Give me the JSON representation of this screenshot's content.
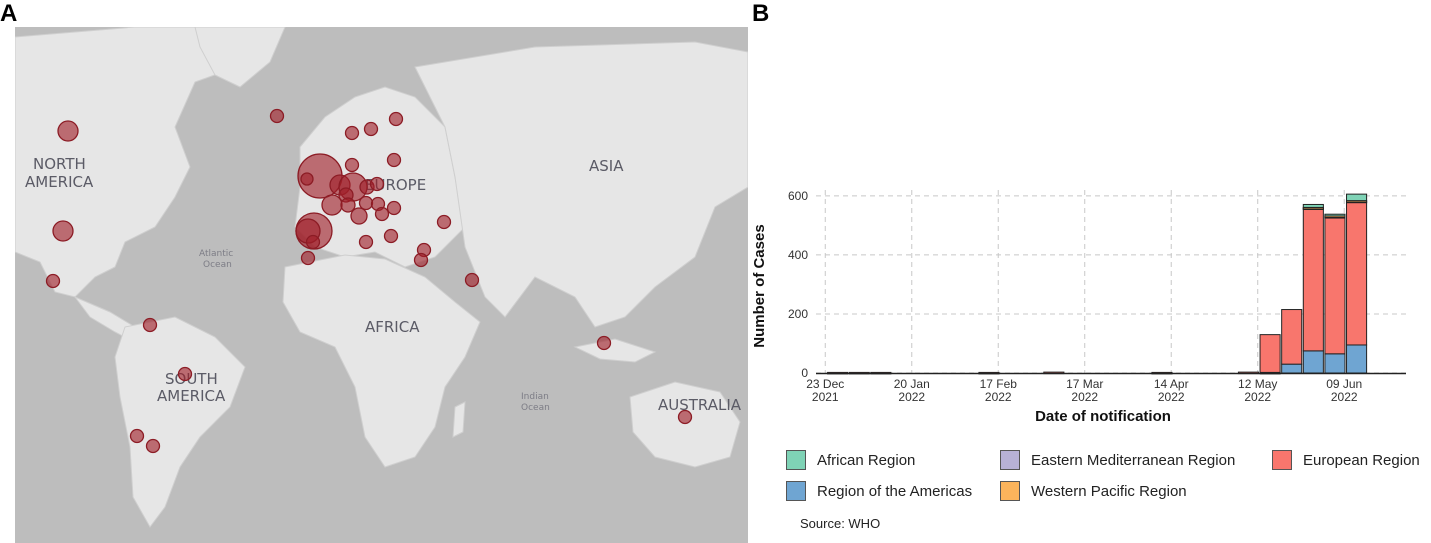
{
  "panels": {
    "a_label": "A",
    "b_label": "B"
  },
  "map": {
    "labels": {
      "north_america": [
        "NORTH",
        "AMERICA"
      ],
      "south_america": [
        "SOUTH",
        "AMERICA"
      ],
      "europe": "EUROPE",
      "asia": "ASIA",
      "africa": "AFRICA",
      "australia": "AUSTRALIA",
      "atlantic": [
        "Atlantic",
        "Ocean"
      ],
      "indian": [
        "Indian",
        "Ocean"
      ]
    },
    "bubble_color": "#a01e28",
    "land_color": "#e6e6e6",
    "water_color": "#bdbdbd"
  },
  "chart_data": {
    "type": "bar",
    "stacked": true,
    "xlabel": "Date of notification",
    "ylabel": "Number of Cases",
    "ylim": [
      0,
      620
    ],
    "yticks": [
      0,
      200,
      400,
      600
    ],
    "xticks": [
      {
        "date": "2021-12-23",
        "label": [
          "23 Dec",
          "2021"
        ]
      },
      {
        "date": "2022-01-20",
        "label": [
          "20 Jan",
          "2022"
        ]
      },
      {
        "date": "2022-02-17",
        "label": [
          "17 Feb",
          "2022"
        ]
      },
      {
        "date": "2022-03-17",
        "label": [
          "17 Mar",
          "2022"
        ]
      },
      {
        "date": "2022-04-14",
        "label": [
          "14 Apr",
          "2022"
        ]
      },
      {
        "date": "2022-05-12",
        "label": [
          "12 May",
          "2022"
        ]
      },
      {
        "date": "2022-06-09",
        "label": [
          "09 Jun",
          "2022"
        ]
      }
    ],
    "xrange": [
      "2021-12-20",
      "2022-06-29"
    ],
    "grid": true,
    "categories": [
      "2021-12-27",
      "2022-01-03",
      "2022-01-10",
      "2022-02-14",
      "2022-03-07",
      "2022-04-11",
      "2022-05-09",
      "2022-05-16",
      "2022-05-23",
      "2022-05-30",
      "2022-06-06",
      "2022-06-13"
    ],
    "series": [
      {
        "name": "Region of the Americas",
        "color": "#6fa5d2",
        "values": [
          0,
          0,
          0,
          0,
          0,
          0,
          0,
          2,
          30,
          75,
          65,
          95
        ]
      },
      {
        "name": "European Region",
        "color": "#f8766d",
        "values": [
          2,
          2,
          2,
          2,
          3,
          2,
          3,
          128,
          185,
          482,
          462,
          485
        ]
      },
      {
        "name": "Eastern Mediterranean Region",
        "color": "#b7b1d6",
        "values": [
          0,
          0,
          0,
          0,
          0,
          0,
          0,
          0,
          0,
          2,
          3,
          2
        ]
      },
      {
        "name": "Western Pacific Region",
        "color": "#fbb45c",
        "values": [
          0,
          0,
          0,
          0,
          0,
          0,
          0,
          0,
          0,
          2,
          2,
          2
        ]
      },
      {
        "name": "African Region",
        "color": "#7fd3b6",
        "values": [
          0,
          0,
          0,
          0,
          0,
          0,
          0,
          0,
          0,
          10,
          6,
          22
        ]
      }
    ],
    "legend": {
      "placement": "bottom",
      "items": [
        {
          "name": "African Region",
          "color": "#7fd3b6"
        },
        {
          "name": "Eastern Mediterranean Region",
          "color": "#b7b1d6"
        },
        {
          "name": "European Region",
          "color": "#f8766d"
        },
        {
          "name": "Region of the Americas",
          "color": "#6fa5d2"
        },
        {
          "name": "Western Pacific Region",
          "color": "#fbb45c"
        }
      ]
    },
    "source": "Source: WHO"
  }
}
